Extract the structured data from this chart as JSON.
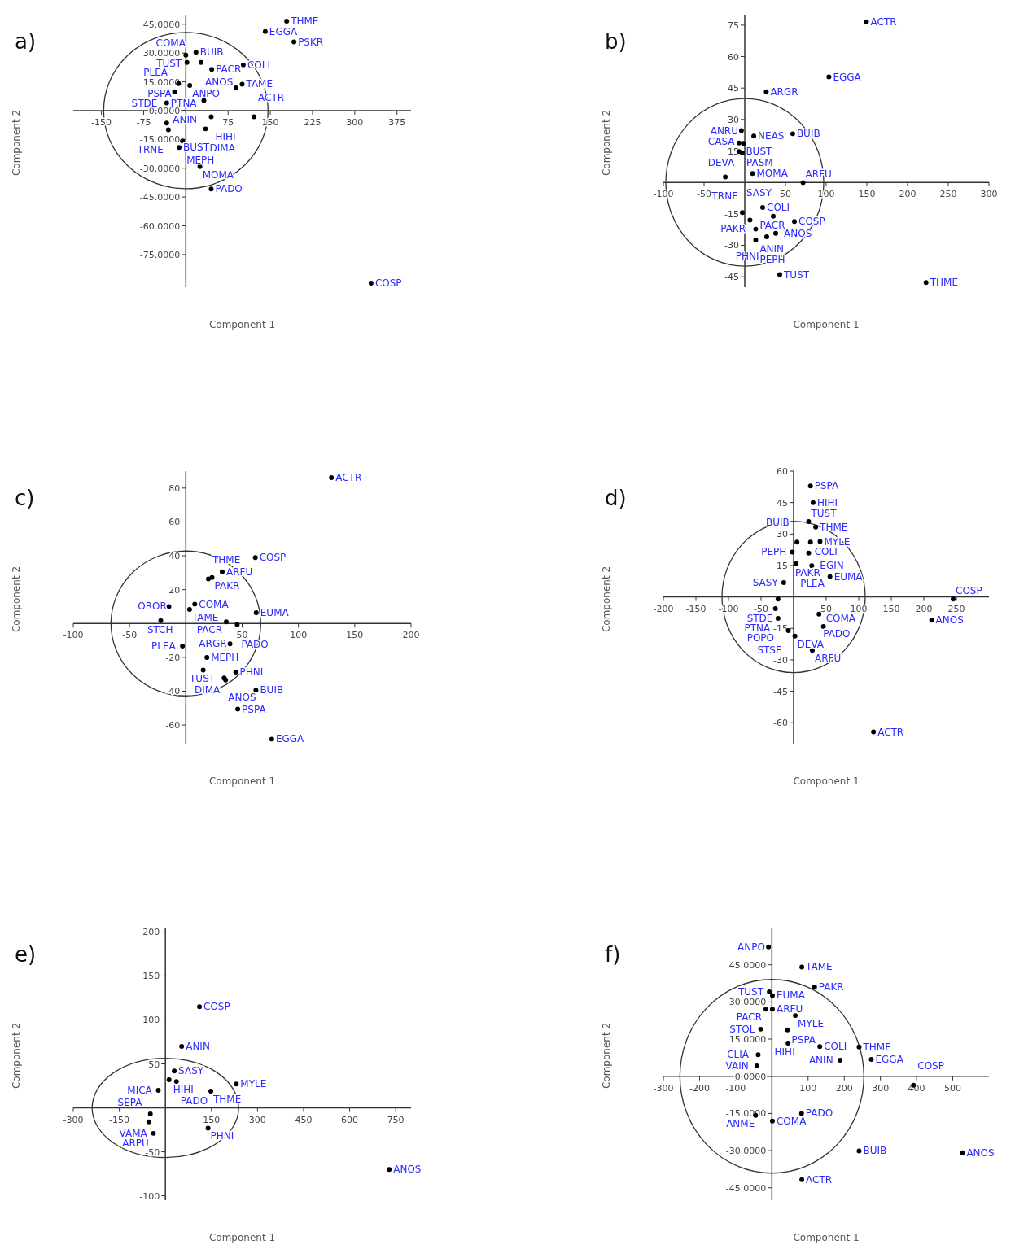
{
  "chart_data": [
    {
      "type": "scatter",
      "title": "a)",
      "xlabel": "Component 1",
      "ylabel": "Component 2",
      "xlim": [
        -200,
        400
      ],
      "ylim": [
        -92,
        50
      ],
      "marker": "circle",
      "xticks": [
        -150,
        -75,
        75,
        150,
        225,
        300,
        375
      ],
      "yticks": [
        {
          "value": 45,
          "label": "45.0000"
        },
        {
          "value": 30,
          "label": "30.0000"
        },
        {
          "value": 15,
          "label": "15.0000"
        },
        {
          "value": 0,
          "label": "0.0000"
        },
        {
          "value": -15,
          "label": "-15.0000"
        },
        {
          "value": -30,
          "label": "-30.0000"
        },
        {
          "value": -45,
          "label": "-45.0000"
        },
        {
          "value": -60,
          "label": "-60.0000"
        },
        {
          "value": -75,
          "label": "-75.0000"
        }
      ],
      "series": [
        {
          "color": "#000000",
          "x": [
            179,
            141,
            192,
            18,
            0,
            2,
            27,
            46,
            102,
            -13,
            7,
            100,
            89,
            32,
            -20,
            -34,
            121,
            45,
            -34,
            -31,
            35,
            -6,
            -12,
            25,
            45,
            329
          ],
          "values": [
            46.6,
            41.2,
            35.8,
            30.4,
            28.9,
            25.1,
            25.1,
            21.5,
            23.8,
            14.1,
            13.1,
            13.8,
            11.9,
            5.3,
            9.8,
            4,
            -3.2,
            -3.2,
            -6.5,
            -10,
            -9.5,
            -15.8,
            -19.2,
            -29.2,
            -40.8,
            -89.9
          ],
          "value_labels": [
            "THME",
            "EGGA",
            "PSKR",
            "BUIB",
            "TUST",
            "COMA",
            "ANOS",
            "PACR",
            "COLI",
            "PSPA",
            "ANPO",
            "TAME",
            null,
            "ANIN",
            "PLEA",
            "STDE",
            "ACTR",
            "HIHI",
            "PTNA",
            "TRNE",
            "DIMA",
            "MEPH",
            "BUST",
            "MOMA",
            "PADO",
            "COSP"
          ]
        }
      ]
    },
    {
      "type": "scatter",
      "title": "b)",
      "xlabel": "Component 1",
      "ylabel": "Component 2",
      "xlim": [
        -100,
        300
      ],
      "ylim": [
        -50,
        80
      ],
      "marker": "circle",
      "xticks": [
        -100,
        -50,
        50,
        100,
        150,
        200,
        250,
        300
      ],
      "yticks": [
        75,
        60,
        45,
        30,
        15,
        -15,
        -30,
        -45
      ],
      "series": [
        {
          "color": "#000000",
          "x": [
            149.5,
            103.4,
            26.4,
            -4.1,
            11.1,
            58.9,
            -1.6,
            -7,
            -7,
            -3,
            -23.9,
            9.5,
            71.6,
            -3,
            22,
            35,
            6.4,
            61,
            13.4,
            38,
            13.4,
            27,
            43,
            222.7
          ],
          "values": [
            76.6,
            50.3,
            43.2,
            24.7,
            22.1,
            23.2,
            18.6,
            18.8,
            14.7,
            14,
            2.6,
            4.2,
            -0.1,
            -14.4,
            -12,
            -16.1,
            -18,
            -18.7,
            -22.3,
            -24.3,
            -27.5,
            -25.9,
            -44,
            -47.8
          ],
          "value_labels": [
            "ACTR",
            "EGGA",
            "ARGR",
            "ANRU",
            "NEAS",
            "BUIB",
            "BUST",
            "DEVA",
            "CASA",
            "PASM",
            "TRNE",
            "MOMA",
            "ARFU",
            "SASY",
            "COLI",
            "PACR",
            "PAKR",
            "COSP",
            "ANIN",
            "ANOS",
            "PEPH",
            "PHNI",
            "TUST",
            "THME"
          ]
        }
      ]
    },
    {
      "type": "scatter",
      "title": "c)",
      "xlabel": "Component 1",
      "ylabel": "Component 2",
      "xlim": [
        -100,
        200
      ],
      "ylim": [
        -71,
        90
      ],
      "marker": "circle",
      "xticks": [
        -100,
        -50,
        50,
        100,
        150,
        200
      ],
      "yticks": [
        80,
        60,
        40,
        20,
        -20,
        -40,
        -60
      ],
      "series": [
        {
          "color": "#000000",
          "x": [
            129.3,
            61.7,
            32.3,
            23.3,
            20,
            -15.1,
            7.9,
            3.3,
            35.9,
            62.5,
            45.6,
            -22.3,
            39.2,
            -3,
            18.7,
            15.4,
            44.3,
            34,
            35.3,
            62.2,
            46.1,
            76.3
          ],
          "values": [
            86.2,
            38.9,
            30.5,
            27.2,
            26.3,
            10,
            11.4,
            8.3,
            1,
            6.4,
            -0.7,
            1.7,
            -12,
            -13.3,
            -20.1,
            -27.5,
            -28.7,
            -32.2,
            -33.4,
            -39.4,
            -50.6,
            -68.3
          ],
          "value_labels": [
            "ACTR",
            "COSP",
            "ARFU",
            "PAKR",
            "THME",
            "OROR",
            "COMA",
            "TAME",
            "PACR",
            "EUMA",
            "PADO",
            "STCH",
            "ARGR",
            "PLEA",
            "MEPH",
            "TUST",
            "PHNI",
            "ANOS",
            "DIMA",
            "BUIB",
            "PSPA",
            "EGGA"
          ]
        }
      ]
    },
    {
      "type": "scatter",
      "title": "d)",
      "xlabel": "Component 1",
      "ylabel": "Component 2",
      "xlim": [
        -200,
        300
      ],
      "ylim": [
        -70,
        60
      ],
      "marker": "circle",
      "xticks": [
        -200,
        -150,
        -100,
        -50,
        50,
        100,
        150,
        200,
        250
      ],
      "yticks": [
        60,
        45,
        30,
        15,
        -15,
        -30,
        -45,
        -60
      ],
      "series": [
        {
          "color": "#000000",
          "x": [
            25.9,
            29.9,
            23.1,
            33.9,
            5.2,
            40.6,
            25.9,
            23.1,
            -2,
            4,
            27.9,
            55.8,
            -15.1,
            -23.9,
            -27.9,
            -23.9,
            39,
            45.8,
            -8,
            2,
            28.7,
            245,
            212,
            122.7
          ],
          "values": [
            52.9,
            45,
            35.9,
            33.3,
            26.1,
            26.4,
            26.1,
            20.9,
            21.4,
            15.9,
            14.9,
            9.7,
            6.8,
            -1,
            -5.6,
            -10.2,
            -8.2,
            -14.1,
            -16.1,
            -18.7,
            -25.5,
            -1,
            -11.1,
            -64.4
          ],
          "value_labels": [
            "PSPA",
            "HIHI",
            "TUST",
            "THME",
            "BUIB",
            "MYLE",
            "COLI",
            "PAKR",
            "PEPH",
            "PLEA",
            "EGIN",
            "EUMA",
            "SASY",
            "STDE",
            "PTNA",
            "POPO",
            "PADO",
            "COMA",
            "STSE",
            "DEVA",
            "ARFU",
            "COSP",
            "ANOS",
            "ACTR"
          ]
        }
      ]
    },
    {
      "type": "scatter",
      "title": "e)",
      "xlabel": "Component 1",
      "ylabel": "Component 2",
      "xlim": [
        -300,
        800
      ],
      "ylim": [
        -105,
        205
      ],
      "marker": "circle",
      "xticks": [
        -300,
        -150,
        150,
        300,
        450,
        600,
        750
      ],
      "yticks": [
        200,
        150,
        100,
        50,
        -50,
        -100
      ],
      "series": [
        {
          "color": "#000000",
          "x": [
            111,
            53,
            29,
            12,
            36,
            -23,
            231,
            148,
            -49,
            -54,
            -39,
            139,
            729
          ],
          "values": [
            115,
            70,
            42,
            32,
            30,
            20,
            27,
            19,
            -7,
            -16,
            -29,
            -23,
            -70
          ],
          "value_labels": [
            "COSP",
            "ANIN",
            "SASY",
            "HIHI",
            "PADO",
            "MICA",
            "MYLE",
            "THME",
            "VAMA",
            "SEPA",
            "ARPU",
            "PHNI",
            "ANOS"
          ]
        }
      ]
    },
    {
      "type": "scatter",
      "title": "f)",
      "xlabel": "Component 1",
      "ylabel": "Component 2",
      "xlim": [
        -300,
        600
      ],
      "ylim": [
        -50,
        60
      ],
      "marker": "circle",
      "xticks": [
        -300,
        -200,
        -100,
        100,
        200,
        300,
        400,
        500
      ],
      "yticks": [
        {
          "value": 45,
          "label": "45.0000"
        },
        {
          "value": 30,
          "label": "30.0000"
        },
        {
          "value": 15,
          "label": "15.0000"
        },
        {
          "value": 0,
          "label": "0.0000"
        },
        {
          "value": -15,
          "label": "-15.0000"
        },
        {
          "value": -30,
          "label": "-30.0000"
        },
        {
          "value": -45,
          "label": "-45.0000"
        }
      ],
      "series": [
        {
          "color": "#000000",
          "x": [
            -9.4,
            82.7,
            118,
            -7.2,
            1.4,
            -16.5,
            1.4,
            64.7,
            43.2,
            -31,
            44.6,
            132.4,
            241,
            188.5,
            274.8,
            -38,
            -41.7,
            391.4,
            82,
            1.4,
            -45,
            241,
            526.6,
            82.7
          ],
          "values": [
            52.2,
            44.1,
            36,
            34.1,
            32.6,
            27.1,
            27.1,
            24.5,
            18.7,
            19,
            13.4,
            12,
            11.8,
            6.5,
            6.8,
            8.7,
            4.2,
            -3.6,
            -15,
            -18.1,
            -15.8,
            -30.1,
            -30.9,
            -41.7
          ],
          "value_labels": [
            "ANPO",
            "TAME",
            "PAKR",
            "TUST",
            "EUMA",
            "PACR",
            "ARFU",
            "MYLE",
            "PSPA",
            "STOL",
            "HIHI",
            "COLI",
            "THME",
            "ANIN",
            "EGGA",
            "CLIA",
            "VAIN",
            "COSP",
            "PADO",
            "COMA",
            "ANME",
            "BUIB",
            "ANOS",
            "ACTR"
          ]
        }
      ]
    }
  ]
}
